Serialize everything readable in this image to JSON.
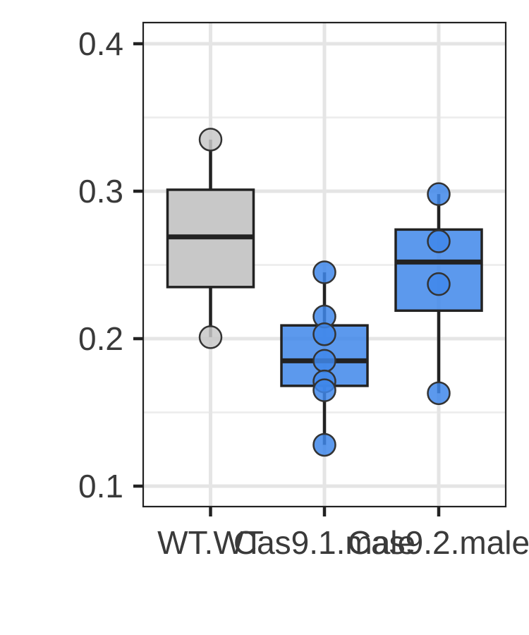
{
  "chart_data": {
    "type": "box",
    "title": "",
    "xlabel": "",
    "ylabel": "",
    "ylim": [
      0.088,
      0.415
    ],
    "yticks": [
      0.1,
      0.2,
      0.3,
      0.4
    ],
    "ytick_labels": [
      "0.1",
      "0.2",
      "0.3",
      "0.4"
    ],
    "minor_yticks": [
      0.15,
      0.25,
      0.35
    ],
    "grid": true,
    "categories": [
      "WT.WT",
      "Cas9.1.male",
      "Cas9.2.male"
    ],
    "boxes": [
      {
        "category": "WT.WT",
        "color": "#c8c8c8",
        "q1": 0.235,
        "median": 0.269,
        "q3": 0.301,
        "whisker_low": 0.201,
        "whisker_high": 0.335,
        "points": [
          0.335,
          0.201
        ]
      },
      {
        "category": "Cas9.1.male",
        "color": "#3f87ea",
        "q1": 0.168,
        "median": 0.185,
        "q3": 0.209,
        "whisker_low": 0.128,
        "whisker_high": 0.245,
        "points": [
          0.245,
          0.215,
          0.203,
          0.185,
          0.171,
          0.165,
          0.128
        ]
      },
      {
        "category": "Cas9.2.male",
        "color": "#3f87ea",
        "q1": 0.219,
        "median": 0.252,
        "q3": 0.274,
        "whisker_low": 0.163,
        "whisker_high": 0.298,
        "points": [
          0.298,
          0.266,
          0.237,
          0.163
        ]
      }
    ]
  }
}
